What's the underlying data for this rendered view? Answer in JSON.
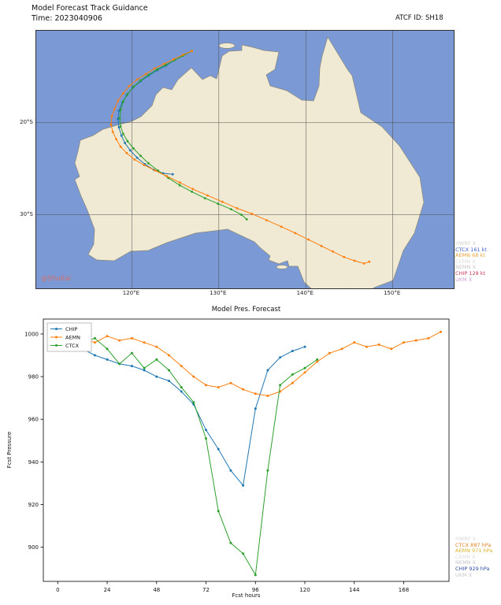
{
  "header": {
    "title": "Model Forecast Track Guidance",
    "time_label": "Time: 2023040906",
    "atcf_label": "ATCF ID: SH18"
  },
  "map": {
    "watermark": "@Shuitai",
    "watermark_color": "#e06a5f",
    "ocean_color": "#7b9ad5",
    "land_color": "#f0e9d4",
    "coast_color": "#8a8878",
    "grid_lats": [
      {
        "label": "20°S",
        "value": 20
      },
      {
        "label": "30°S",
        "value": 30
      }
    ],
    "grid_lons": [
      {
        "label": "120°E",
        "value": 120
      },
      {
        "label": "130°E",
        "value": 130
      },
      {
        "label": "140°E",
        "value": 140
      },
      {
        "label": "150°E",
        "value": 150
      }
    ],
    "legend": [
      {
        "text": "HWRF X",
        "color": "#cfcfcf"
      },
      {
        "text": "CTCX 161 kt",
        "color": "#4060c8"
      },
      {
        "text": "AEMN 68 kt",
        "color": "#e8a33a"
      },
      {
        "text": "CEMN X",
        "color": "#dcdcdc"
      },
      {
        "text": "NEMN X",
        "color": "#c6c6c6"
      },
      {
        "text": "CHIP 128 kt",
        "color": "#cc3a5e"
      },
      {
        "text": "UKM X",
        "color": "#cf9fd8"
      }
    ]
  },
  "pressure_legend": [
    {
      "text": "HWRF X",
      "color": "#d8d8d8"
    },
    {
      "text": "CTCX 887 hPa",
      "color": "#e5862c"
    },
    {
      "text": "AEMN 971 hPa",
      "color": "#ddb32f"
    },
    {
      "text": "CEMN X",
      "color": "#dcdcdc"
    },
    {
      "text": "NEMN X",
      "color": "#c6c6c6"
    },
    {
      "text": "CHIP 929 hPa",
      "color": "#2e4fa3"
    },
    {
      "text": "UKM X",
      "color": "#c9c9c9"
    }
  ],
  "chart_data": [
    {
      "type": "line",
      "title": "Model Pres. Forecast",
      "xlabel": "Fcst hours",
      "ylabel": "Fcst Pressure",
      "xticks": [
        0,
        24,
        48,
        72,
        96,
        120,
        144,
        168
      ],
      "yticks": [
        1000,
        980,
        960,
        940,
        920,
        900
      ],
      "xlim": [
        -7,
        190
      ],
      "ylim": [
        884,
        1007
      ],
      "grid": false,
      "legend_position": "upper left",
      "series": [
        {
          "name": "CHIP",
          "color": "#1f77b4",
          "x": [
            6,
            12,
            18,
            24,
            30,
            36,
            42,
            48,
            54,
            60,
            66,
            72,
            78,
            84,
            90,
            96,
            102,
            108,
            114,
            120
          ],
          "y": [
            995,
            993,
            990,
            988,
            986,
            985,
            983,
            980,
            978,
            973,
            967,
            955,
            946,
            936,
            929,
            965,
            983,
            989,
            992,
            994
          ]
        },
        {
          "name": "AEMN",
          "color": "#ff7f0e",
          "x": [
            6,
            12,
            18,
            24,
            30,
            36,
            42,
            48,
            54,
            60,
            66,
            72,
            78,
            84,
            90,
            96,
            102,
            108,
            114,
            120,
            126,
            132,
            138,
            144,
            150,
            156,
            162,
            168,
            174,
            180,
            186
          ],
          "y": [
            1000,
            998,
            996,
            999,
            997,
            998,
            996,
            994,
            990,
            985,
            980,
            976,
            975,
            977,
            974,
            972,
            971,
            973,
            977,
            982,
            987,
            991,
            993,
            996,
            994,
            995,
            993,
            996,
            997,
            998,
            1001
          ]
        },
        {
          "name": "CTCX",
          "color": "#2ca02c",
          "x": [
            6,
            12,
            18,
            24,
            30,
            36,
            42,
            48,
            54,
            60,
            66,
            72,
            78,
            84,
            90,
            96,
            102,
            108,
            114,
            120,
            126
          ],
          "y": [
            999,
            996,
            998,
            993,
            986,
            991,
            984,
            988,
            983,
            975,
            968,
            951,
            917,
            902,
            897,
            887,
            936,
            976,
            981,
            984,
            988
          ]
        }
      ]
    },
    {
      "type": "scatter",
      "title": "Model Forecast Track Guidance",
      "series": [
        {
          "name": "CHIP",
          "color": "#1f77b4",
          "track": [
            [
              126.9,
              12.2
            ],
            [
              125.9,
              12.7
            ],
            [
              124.9,
              13.2
            ],
            [
              123.9,
              13.8
            ],
            [
              122.9,
              14.3
            ],
            [
              121.9,
              14.9
            ],
            [
              121.0,
              15.5
            ],
            [
              120.1,
              16.2
            ],
            [
              119.4,
              17.0
            ],
            [
              118.9,
              17.8
            ],
            [
              118.5,
              18.7
            ],
            [
              118.4,
              19.6
            ],
            [
              118.5,
              20.5
            ],
            [
              118.8,
              21.4
            ],
            [
              119.2,
              22.2
            ],
            [
              119.8,
              23.0
            ],
            [
              120.6,
              23.8
            ],
            [
              121.5,
              24.5
            ],
            [
              122.5,
              25.1
            ],
            [
              123.6,
              25.5
            ],
            [
              124.7,
              25.6
            ]
          ]
        },
        {
          "name": "CTCX",
          "color": "#2ca02c",
          "track": [
            [
              126.9,
              12.2
            ],
            [
              125.9,
              12.7
            ],
            [
              124.9,
              13.2
            ],
            [
              123.9,
              13.7
            ],
            [
              122.9,
              14.2
            ],
            [
              121.9,
              14.8
            ],
            [
              121.0,
              15.4
            ],
            [
              120.2,
              16.1
            ],
            [
              119.5,
              16.9
            ],
            [
              119.0,
              17.7
            ],
            [
              118.7,
              18.6
            ],
            [
              118.6,
              19.5
            ],
            [
              118.7,
              20.4
            ],
            [
              119.0,
              21.2
            ],
            [
              119.5,
              22.0
            ],
            [
              120.2,
              22.8
            ],
            [
              121.0,
              23.6
            ],
            [
              121.9,
              24.4
            ],
            [
              123.0,
              25.2
            ],
            [
              124.2,
              26.0
            ],
            [
              125.5,
              26.8
            ],
            [
              126.9,
              27.5
            ],
            [
              128.4,
              28.2
            ],
            [
              129.9,
              28.8
            ],
            [
              131.4,
              29.4
            ],
            [
              132.6,
              30.0
            ],
            [
              133.2,
              30.5
            ]
          ]
        },
        {
          "name": "AEMN",
          "color": "#ff7f0e",
          "track": [
            [
              126.9,
              12.2
            ],
            [
              125.9,
              12.6
            ],
            [
              124.8,
              13.1
            ],
            [
              123.7,
              13.6
            ],
            [
              122.6,
              14.1
            ],
            [
              121.6,
              14.7
            ],
            [
              120.6,
              15.3
            ],
            [
              119.7,
              16.0
            ],
            [
              119.0,
              16.8
            ],
            [
              118.4,
              17.6
            ],
            [
              118.0,
              18.5
            ],
            [
              117.7,
              19.3
            ],
            [
              117.6,
              20.2
            ],
            [
              117.8,
              21.0
            ],
            [
              118.2,
              21.8
            ],
            [
              118.7,
              22.6
            ],
            [
              119.4,
              23.3
            ],
            [
              120.3,
              24.0
            ],
            [
              121.4,
              24.6
            ],
            [
              122.7,
              25.2
            ],
            [
              124.0,
              25.8
            ],
            [
              125.5,
              26.5
            ],
            [
              127.0,
              27.2
            ],
            [
              128.7,
              27.9
            ],
            [
              130.4,
              28.6
            ],
            [
              132.1,
              29.3
            ],
            [
              133.8,
              29.9
            ],
            [
              135.5,
              30.6
            ],
            [
              137.2,
              31.3
            ],
            [
              138.8,
              32.0
            ],
            [
              140.3,
              32.7
            ],
            [
              141.8,
              33.4
            ],
            [
              143.1,
              34.0
            ],
            [
              144.4,
              34.6
            ],
            [
              145.6,
              35.0
            ],
            [
              146.7,
              35.3
            ],
            [
              147.3,
              35.1
            ]
          ]
        }
      ]
    }
  ]
}
